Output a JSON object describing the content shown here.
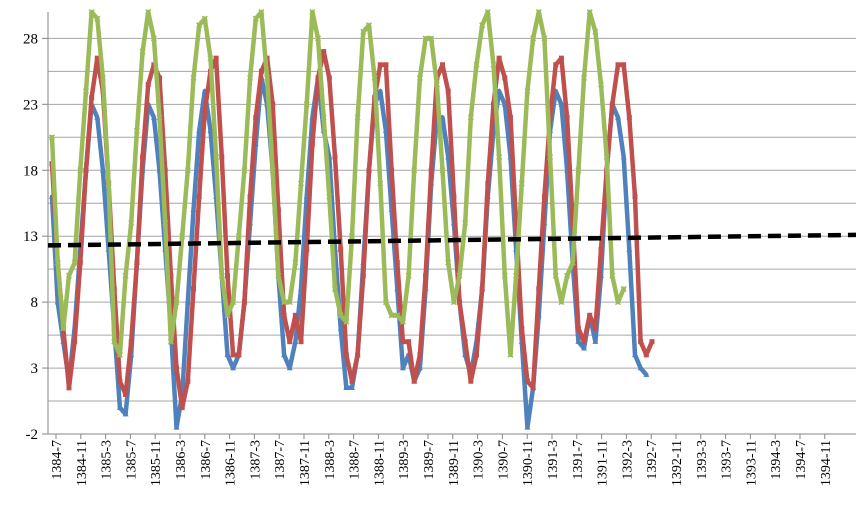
{
  "chart_data": {
    "type": "line",
    "title": "",
    "xlabel": "",
    "ylabel": "",
    "ylim": [
      -2,
      30
    ],
    "y_ticks": [
      -2,
      3,
      8,
      13,
      18,
      23,
      28
    ],
    "x_tick_labels": [
      "1384-7",
      "1384-11",
      "1385-3",
      "1385-7",
      "1385-11",
      "1386-3",
      "1386-7",
      "1386-11",
      "1387-3",
      "1387-7",
      "1387-11",
      "1388-3",
      "1388-7",
      "1388-11",
      "1389-3",
      "1389-7",
      "1389-11",
      "1390-3",
      "1390-7",
      "1390-11",
      "1391-3",
      "1391-7",
      "1391-11",
      "1392-3",
      "1392-7",
      "1392-11",
      "1393-3",
      "1393-7",
      "1393-11",
      "1394-3",
      "1394-7",
      "1394-11"
    ],
    "grid": "horizontal",
    "legend": "none",
    "series": [
      {
        "color": "#4f81bd",
        "marker": "triangle",
        "values": [
          16,
          8,
          5,
          2,
          6,
          12,
          18,
          23,
          22,
          18,
          12,
          6,
          0,
          -0.5,
          4,
          11,
          18,
          23,
          22,
          18,
          12,
          6,
          -1.5,
          1,
          8,
          15,
          21,
          24,
          21,
          16,
          10,
          4,
          3,
          4,
          8,
          14,
          20,
          25,
          23,
          18,
          10,
          4,
          3,
          5,
          9,
          16,
          22,
          25,
          21,
          19,
          12,
          6,
          1.5,
          1.5,
          4,
          11,
          18,
          23,
          24,
          21,
          15,
          9,
          3,
          4,
          2,
          3,
          9,
          17,
          22,
          22,
          19,
          14,
          8,
          4,
          2.5,
          5,
          9,
          16,
          21,
          24,
          23,
          19,
          12,
          5,
          -1.5,
          1.5,
          7,
          14,
          21,
          24,
          23,
          18,
          11,
          5,
          4.5,
          7,
          5,
          10,
          18,
          23,
          22,
          19,
          12,
          4,
          3,
          2.5
        ]
      },
      {
        "color": "#c0504d",
        "marker": "square",
        "values": [
          18.5,
          11,
          6,
          1.5,
          5,
          11,
          18,
          23.5,
          26.5,
          24,
          17,
          9,
          2,
          1,
          5,
          11,
          19,
          24.5,
          26,
          25,
          18,
          10,
          3,
          0,
          2,
          9,
          16,
          22.5,
          25.5,
          26.5,
          19,
          10,
          4,
          4,
          8,
          16,
          22,
          25.5,
          26.5,
          23,
          15,
          7,
          5,
          7,
          5,
          12,
          20,
          25,
          27,
          25,
          19,
          12,
          4,
          2,
          4,
          10,
          18,
          23.5,
          26,
          26,
          18,
          11,
          5,
          5,
          2,
          4,
          10,
          18,
          25,
          26,
          24,
          16,
          8,
          5,
          2,
          4,
          9,
          17,
          23,
          26.5,
          25,
          22,
          14,
          6,
          2,
          1.5,
          9,
          16,
          22,
          26,
          26.5,
          22,
          14,
          6,
          5,
          7,
          6,
          12,
          18,
          23,
          26,
          26,
          22,
          16,
          5,
          4,
          5
        ]
      },
      {
        "color": "#9bbb59",
        "marker": "x",
        "values": [
          20.5,
          11,
          6,
          10,
          11,
          18,
          24,
          30,
          29.5,
          25,
          17,
          5,
          4,
          10,
          14,
          21,
          27,
          30,
          28,
          22,
          14,
          5,
          8,
          13,
          18,
          25,
          29,
          29.5,
          26.5,
          19,
          10,
          7,
          8,
          13,
          18,
          25,
          29.5,
          30,
          25,
          18,
          10,
          8,
          8,
          11,
          17,
          23,
          30,
          28,
          22,
          16,
          9,
          7,
          6.5,
          13,
          22,
          28.5,
          29,
          25,
          17,
          8,
          7,
          7,
          6.5,
          10,
          18,
          25,
          28,
          28,
          24.5,
          18,
          11,
          8,
          10,
          14,
          22,
          26,
          29,
          30,
          26,
          19,
          10,
          4,
          10,
          17,
          24,
          28,
          30,
          28,
          19,
          10,
          8,
          10,
          11,
          18,
          25,
          30,
          28.5,
          24.5,
          19,
          10,
          8,
          9
        ]
      },
      {
        "color": "#000000",
        "style": "dashed",
        "values": [
          12.3,
          13.1
        ]
      }
    ]
  }
}
